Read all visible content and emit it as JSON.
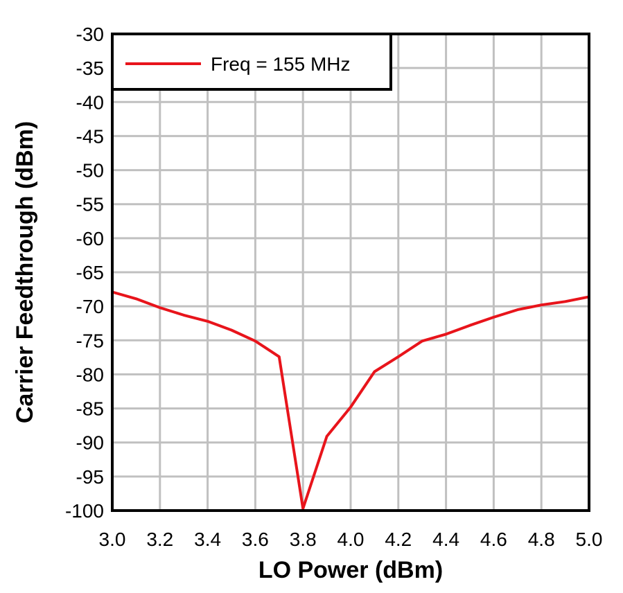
{
  "chart_data": {
    "type": "line",
    "xlabel": "LO Power (dBm)",
    "ylabel": "Carrier Feedthrough (dBm)",
    "xlim": [
      3.0,
      5.0
    ],
    "ylim": [
      -100,
      -30
    ],
    "xticks": [
      "3.0",
      "3.2",
      "3.4",
      "3.6",
      "3.8",
      "4.0",
      "4.2",
      "4.4",
      "4.6",
      "4.8",
      "5.0"
    ],
    "yticks": [
      "-30",
      "-35",
      "-40",
      "-45",
      "-50",
      "-55",
      "-60",
      "-65",
      "-70",
      "-75",
      "-80",
      "-85",
      "-90",
      "-95",
      "-100"
    ],
    "grid": true,
    "legend_position": "top-left",
    "series": [
      {
        "name": "Freq = 155 MHz",
        "color": "#e8141b",
        "x": [
          3.0,
          3.1,
          3.2,
          3.3,
          3.4,
          3.5,
          3.6,
          3.7,
          3.8,
          3.9,
          4.0,
          4.1,
          4.2,
          4.3,
          4.4,
          4.5,
          4.6,
          4.7,
          4.8,
          4.9,
          5.0
        ],
        "y": [
          -67.9,
          -68.9,
          -70.2,
          -71.3,
          -72.2,
          -73.5,
          -75.1,
          -77.4,
          -99.7,
          -89.1,
          -84.8,
          -79.6,
          -77.4,
          -75.1,
          -74.1,
          -72.8,
          -71.6,
          -70.5,
          -69.8,
          -69.3,
          -68.6
        ]
      }
    ]
  }
}
